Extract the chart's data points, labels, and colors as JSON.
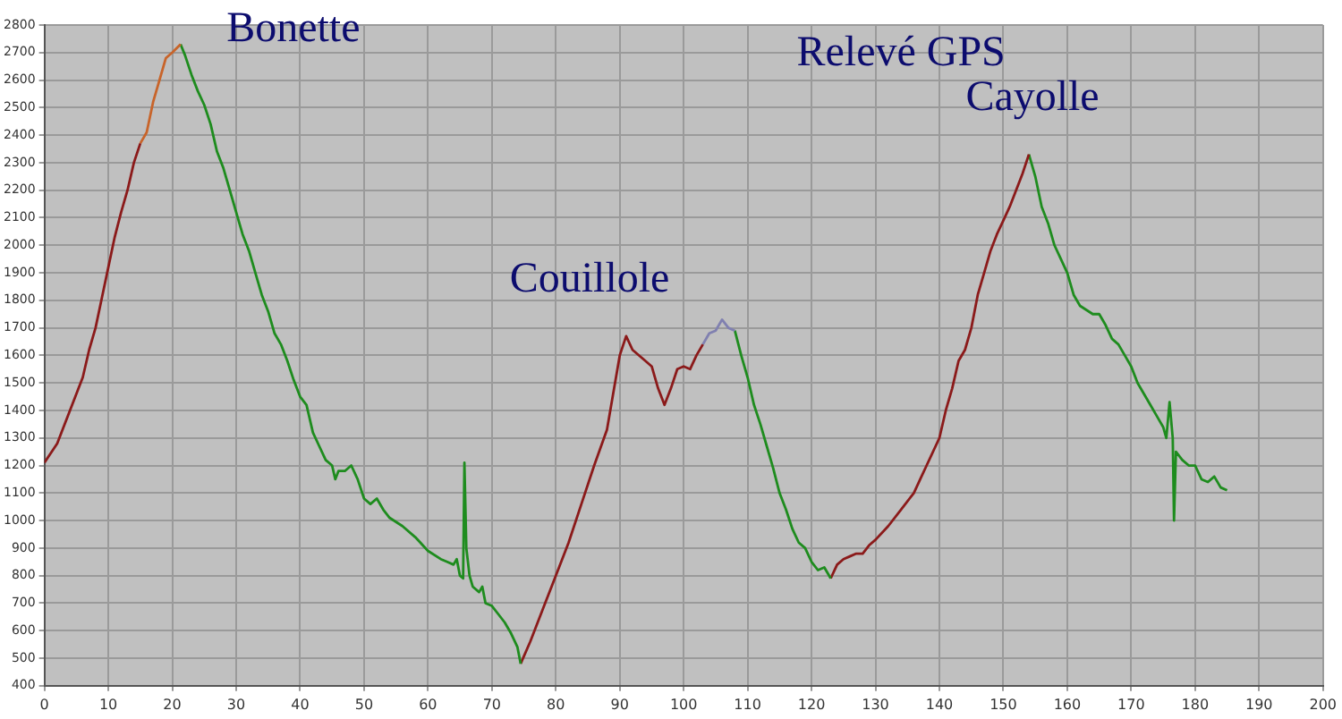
{
  "chart_data": {
    "type": "line",
    "title": "Relevé GPS",
    "xlim": [
      0,
      200
    ],
    "xticks": [
      0,
      10,
      20,
      30,
      40,
      50,
      60,
      70,
      80,
      90,
      100,
      110,
      120,
      130,
      140,
      150,
      160,
      170,
      180,
      190,
      200
    ],
    "ylim": [
      400,
      2800
    ],
    "yticks": [
      400,
      500,
      600,
      700,
      800,
      900,
      1000,
      1100,
      1200,
      1300,
      1400,
      1500,
      1600,
      1700,
      1800,
      1900,
      2000,
      2100,
      2200,
      2300,
      2400,
      2500,
      2600,
      2700,
      2800
    ],
    "grid": true,
    "legend": false,
    "marker": "none",
    "line_style": "solid",
    "annotations": [
      {
        "text": "Bonette",
        "x": 21.3,
        "y": 2730
      },
      {
        "text": "Couillole",
        "x": 106,
        "y": 1730
      },
      {
        "text": "Cayolle",
        "x": 154,
        "y": 2330
      }
    ],
    "series": [
      {
        "color": "#8b1a1a",
        "x": [
          0,
          2,
          4,
          5,
          6,
          7,
          8,
          9,
          10,
          11,
          12,
          13,
          14,
          15
        ],
        "values": [
          1210,
          1280,
          1400,
          1460,
          1520,
          1620,
          1700,
          1810,
          1920,
          2030,
          2120,
          2200,
          2300,
          2370
        ]
      },
      {
        "color": "#c8642a",
        "x": [
          15,
          16,
          17,
          18,
          19,
          20,
          21.3
        ],
        "values": [
          2370,
          2410,
          2520,
          2600,
          2680,
          2700,
          2730
        ]
      },
      {
        "color": "#1e8c1e",
        "x": [
          21.3,
          22,
          23,
          24,
          25,
          26,
          27,
          28,
          29,
          30,
          31,
          32,
          33,
          34,
          35,
          36,
          37,
          38,
          39,
          40,
          41,
          42,
          43,
          44,
          45,
          45.5,
          46,
          47,
          48,
          49,
          50,
          51,
          52,
          53,
          54,
          56,
          58,
          60,
          62,
          63,
          64,
          64.5,
          65,
          65.5,
          65.7,
          66,
          66.5,
          67,
          68,
          68.5,
          69,
          70,
          71,
          72,
          73,
          74,
          74.5
        ],
        "values": [
          2730,
          2690,
          2620,
          2560,
          2510,
          2440,
          2340,
          2280,
          2200,
          2120,
          2040,
          1980,
          1900,
          1820,
          1760,
          1680,
          1640,
          1580,
          1510,
          1450,
          1420,
          1320,
          1270,
          1220,
          1200,
          1150,
          1180,
          1180,
          1200,
          1150,
          1080,
          1060,
          1080,
          1040,
          1010,
          980,
          940,
          890,
          860,
          850,
          840,
          860,
          800,
          790,
          1210,
          900,
          800,
          760,
          740,
          760,
          700,
          690,
          660,
          630,
          590,
          540,
          480
        ]
      },
      {
        "color": "#8b1a1a",
        "x": [
          74.5,
          76,
          78,
          80,
          82,
          84,
          86,
          88,
          90,
          91,
          92,
          94,
          95,
          96,
          97,
          98,
          99,
          100,
          101,
          102,
          103
        ],
        "values": [
          480,
          560,
          680,
          800,
          920,
          1060,
          1200,
          1330,
          1600,
          1670,
          1620,
          1580,
          1560,
          1480,
          1420,
          1480,
          1550,
          1560,
          1550,
          1600,
          1640
        ]
      },
      {
        "color": "#8080b0",
        "x": [
          103,
          104,
          105,
          106,
          107,
          108
        ],
        "values": [
          1640,
          1680,
          1690,
          1730,
          1700,
          1690
        ]
      },
      {
        "color": "#1e8c1e",
        "x": [
          108,
          109,
          110,
          111,
          112,
          113,
          114,
          115,
          116,
          117,
          118,
          119,
          120,
          121,
          122,
          123
        ],
        "values": [
          1690,
          1600,
          1520,
          1420,
          1350,
          1270,
          1190,
          1100,
          1040,
          970,
          920,
          900,
          850,
          820,
          830,
          790
        ]
      },
      {
        "color": "#8b1a1a",
        "x": [
          123,
          124,
          125,
          126,
          127,
          128,
          129,
          130,
          132,
          134,
          136,
          137,
          138,
          140,
          141,
          142,
          143,
          144,
          145,
          146,
          147,
          148,
          149,
          150,
          151,
          152,
          153,
          154
        ],
        "values": [
          790,
          840,
          860,
          870,
          880,
          880,
          910,
          930,
          980,
          1040,
          1100,
          1150,
          1200,
          1300,
          1400,
          1480,
          1580,
          1620,
          1700,
          1820,
          1900,
          1980,
          2040,
          2090,
          2140,
          2200,
          2260,
          2330
        ]
      },
      {
        "color": "#1e8c1e",
        "x": [
          154,
          155,
          156,
          157,
          158,
          159,
          160,
          161,
          162,
          164,
          165,
          166,
          167,
          168,
          169,
          170,
          171,
          172,
          173,
          174,
          175,
          175.5,
          176,
          176.5,
          176.7,
          177,
          178,
          179,
          180,
          181,
          182,
          183,
          184,
          185
        ],
        "values": [
          2330,
          2250,
          2140,
          2080,
          2000,
          1950,
          1900,
          1820,
          1780,
          1750,
          1750,
          1710,
          1660,
          1640,
          1600,
          1560,
          1500,
          1460,
          1420,
          1380,
          1340,
          1300,
          1430,
          1300,
          1000,
          1250,
          1220,
          1200,
          1200,
          1150,
          1140,
          1160,
          1120,
          1110
        ]
      }
    ]
  }
}
